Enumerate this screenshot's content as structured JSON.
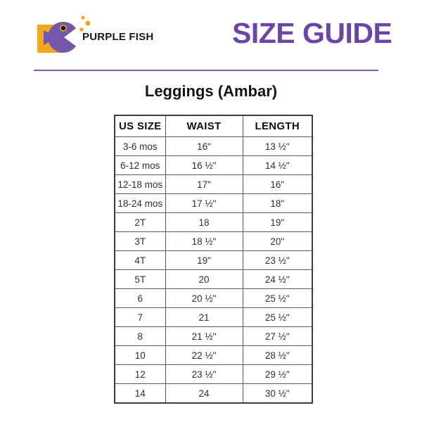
{
  "brand": {
    "name": "PURPLE FISH"
  },
  "header": {
    "title": "SIZE GUIDE"
  },
  "section": {
    "title": "Leggings (Ambar)"
  },
  "table": {
    "headers": [
      "US SIZE",
      "WAIST",
      "LENGTH"
    ],
    "rows": [
      [
        "3-6 mos",
        "16\"",
        "13 ½\""
      ],
      [
        "6-12 mos",
        "16 ½\"",
        "14 ½\""
      ],
      [
        "12-18 mos",
        "17\"",
        "16\""
      ],
      [
        "18-24 mos",
        "17 ½\"",
        "18\""
      ],
      [
        "2T",
        "18",
        "19\""
      ],
      [
        "3T",
        "18 ½\"",
        "20\""
      ],
      [
        "4T",
        "19\"",
        "23 ½\""
      ],
      [
        "5T",
        "20",
        "24 ½\""
      ],
      [
        "6",
        "20 ½\"",
        "25 ½\""
      ],
      [
        "7",
        "21",
        "25 ½\""
      ],
      [
        "8",
        "21 ½\"",
        "27 ½\""
      ],
      [
        "10",
        "22 ½\"",
        "28 ½\""
      ],
      [
        "12",
        "23 ½\"",
        "29 ½\""
      ],
      [
        "14",
        "24",
        "30 ½\""
      ]
    ]
  },
  "icons": {
    "logo": "fish-logo-icon"
  },
  "colors": {
    "heading_purple": "#6c46a6",
    "fish_purple": "#7457a8",
    "logo_yellow": "#f2a71e",
    "divider_purple": "#7e5fae",
    "eye_black": "#141414",
    "table_border": "#3d3d3d",
    "text_black": "#151515"
  }
}
